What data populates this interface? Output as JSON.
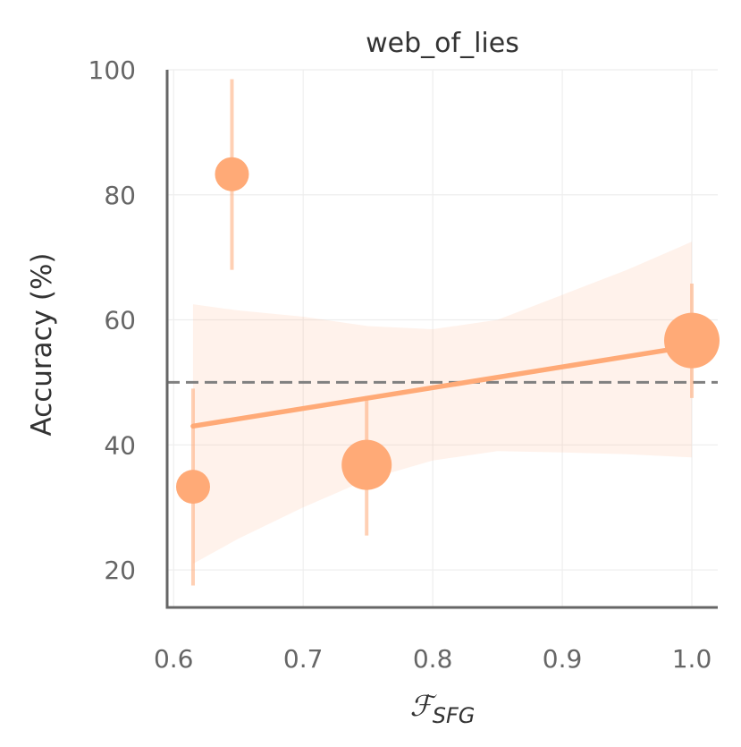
{
  "chart_data": {
    "type": "scatter",
    "title": "web_of_lies",
    "xlabel": "ℱ",
    "xlabel_subscript": "SFG",
    "ylabel": "Accuracy (%)",
    "xlim": [
      0.595,
      1.02
    ],
    "ylim": [
      14,
      100
    ],
    "xticks": [
      0.6,
      0.7,
      0.8,
      0.9,
      1.0
    ],
    "xtick_labels": [
      "0.6",
      "0.7",
      "0.8",
      "0.9",
      "1.0"
    ],
    "yticks": [
      20,
      40,
      60,
      80,
      100
    ],
    "ytick_labels": [
      "20",
      "40",
      "60",
      "80",
      "100"
    ],
    "grid": true,
    "reference_line": {
      "y": 50,
      "style": "dashed",
      "color": "#808080"
    },
    "color": "#FFAA77",
    "points": [
      {
        "x": 0.615,
        "y": 33.3,
        "yerr_low": 17.5,
        "yerr_high": 49.0,
        "size": 1
      },
      {
        "x": 0.645,
        "y": 83.3,
        "yerr_low": 68.0,
        "yerr_high": 98.5,
        "size": 1
      },
      {
        "x": 0.749,
        "y": 36.8,
        "yerr_low": 25.5,
        "yerr_high": 47.8,
        "size": 2
      },
      {
        "x": 1.0,
        "y": 56.7,
        "yerr_low": 47.5,
        "yerr_high": 65.8,
        "size": 3
      }
    ],
    "regression": {
      "x": [
        0.615,
        1.0
      ],
      "y": [
        43.0,
        55.8
      ],
      "ci_x": [
        0.615,
        0.65,
        0.7,
        0.75,
        0.8,
        0.85,
        0.9,
        0.95,
        1.0
      ],
      "ci_upper": [
        62.5,
        61.5,
        60.5,
        59.0,
        58.5,
        60.0,
        64.0,
        68.0,
        72.5
      ],
      "ci_lower": [
        21.0,
        25.0,
        30.0,
        34.5,
        37.5,
        39.0,
        38.8,
        38.5,
        38.0
      ]
    }
  }
}
